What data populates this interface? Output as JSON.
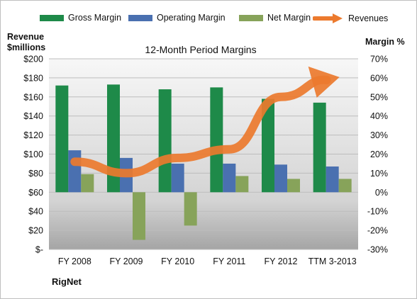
{
  "legend": {
    "gross": "Gross Margin",
    "operating": "Operating Margin",
    "net": "Net Margin",
    "revenues": "Revenues"
  },
  "left_axis_title": [
    "Revenue",
    "$millions"
  ],
  "right_axis_title": "Margin %",
  "company": "RigNet",
  "colors": {
    "gross": "#1e8a49",
    "operating": "#4a70b0",
    "net": "#87a35a",
    "revenues": "#ec7a2e"
  },
  "chart_data": {
    "type": "bar",
    "title": "12-Month Period Margins",
    "categories": [
      "FY 2008",
      "FY 2009",
      "FY 2010",
      "FY 2011",
      "FY 2012",
      "TTM 3-2013"
    ],
    "left_axis": {
      "ylim": [
        0,
        200
      ],
      "ticks": [
        "$-",
        "$20",
        "$40",
        "$60",
        "$80",
        "$100",
        "$120",
        "$140",
        "$160",
        "$180",
        "$200"
      ]
    },
    "right_axis": {
      "ylim": [
        -30,
        70
      ],
      "ticks": [
        "-30%",
        "-20%",
        "-10%",
        "0%",
        "10%",
        "20%",
        "30%",
        "40%",
        "50%",
        "60%",
        "70%"
      ]
    },
    "series": [
      {
        "name": "Gross Margin",
        "axis": "right",
        "values": [
          56,
          56.5,
          54,
          55,
          49,
          47
        ]
      },
      {
        "name": "Operating Margin",
        "axis": "right",
        "values": [
          22,
          18,
          15,
          15,
          14.5,
          13.5
        ]
      },
      {
        "name": "Net Margin",
        "axis": "right",
        "values": [
          9.5,
          -25,
          -17.5,
          8.5,
          7,
          7
        ]
      },
      {
        "name": "Revenues",
        "axis": "left",
        "type": "line",
        "values": [
          92,
          80,
          96,
          105,
          160,
          180
        ]
      }
    ],
    "grid": true,
    "legend_position": "top"
  }
}
